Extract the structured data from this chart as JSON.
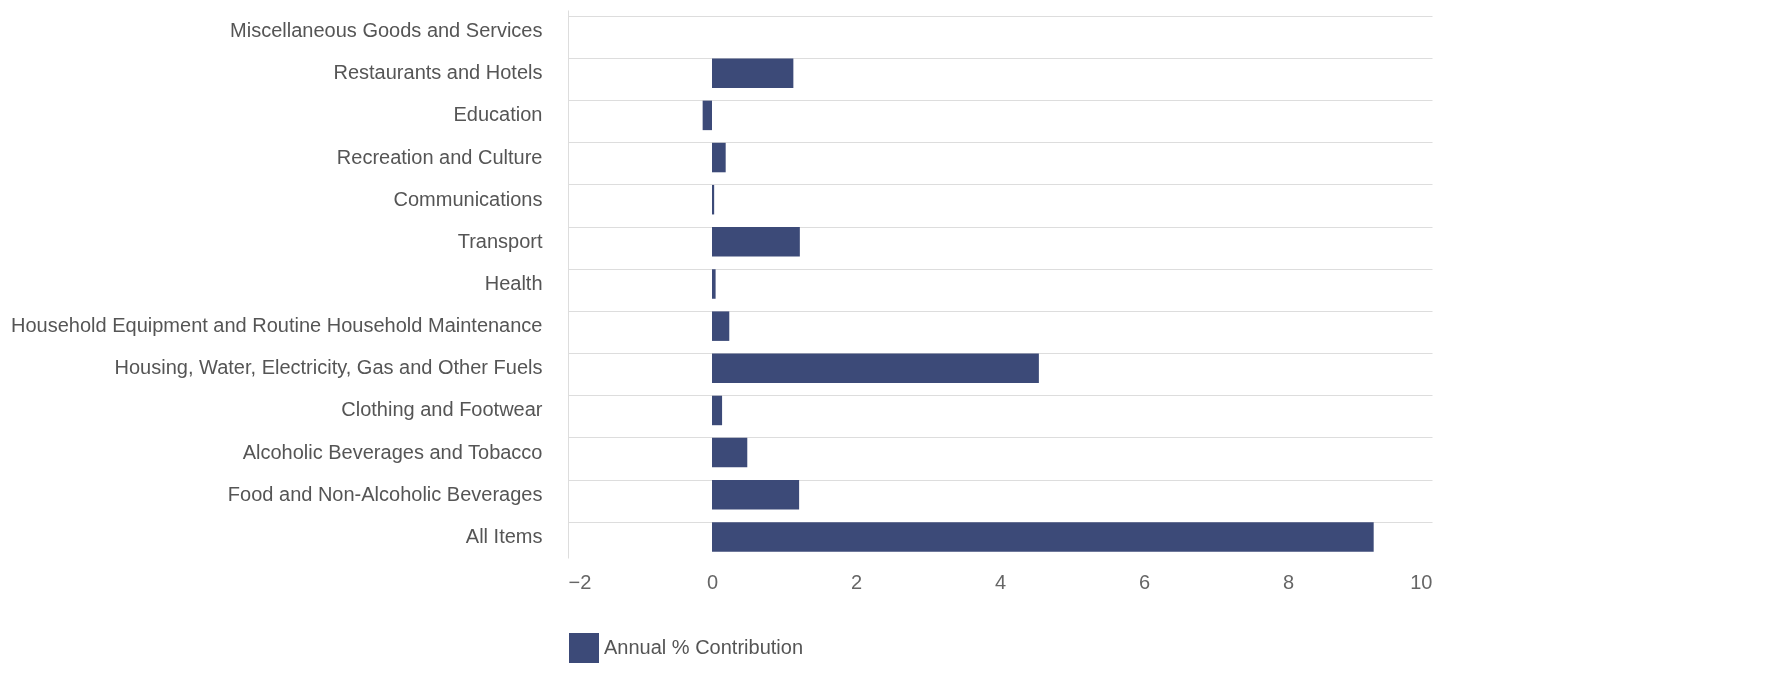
{
  "chart_data": {
    "type": "bar",
    "orientation": "horizontal",
    "categories": [
      "Miscellaneous Goods and Services",
      "Restaurants and Hotels",
      "Education",
      "Recreation and Culture",
      "Communications",
      "Transport",
      "Health",
      "Household Equipment and Routine Household Maintenance",
      "Housing, Water, Electricity, Gas and Other Fuels",
      "Clothing and Footwear",
      "Alcoholic Beverages and Tobacco",
      "Food and Non-Alcoholic Beverages",
      "All Items"
    ],
    "series": [
      {
        "name": "Annual % Contribution",
        "color": "#3c4a78",
        "values": [
          0,
          1.13,
          -0.13,
          0.19,
          0.03,
          1.22,
          0.05,
          0.24,
          4.54,
          0.14,
          0.49,
          1.21,
          9.19
        ]
      }
    ],
    "xlim": [
      -2,
      10
    ],
    "xticks": [
      -2,
      0,
      2,
      4,
      6,
      8,
      10
    ],
    "grid": "y",
    "legend": "bottom"
  }
}
